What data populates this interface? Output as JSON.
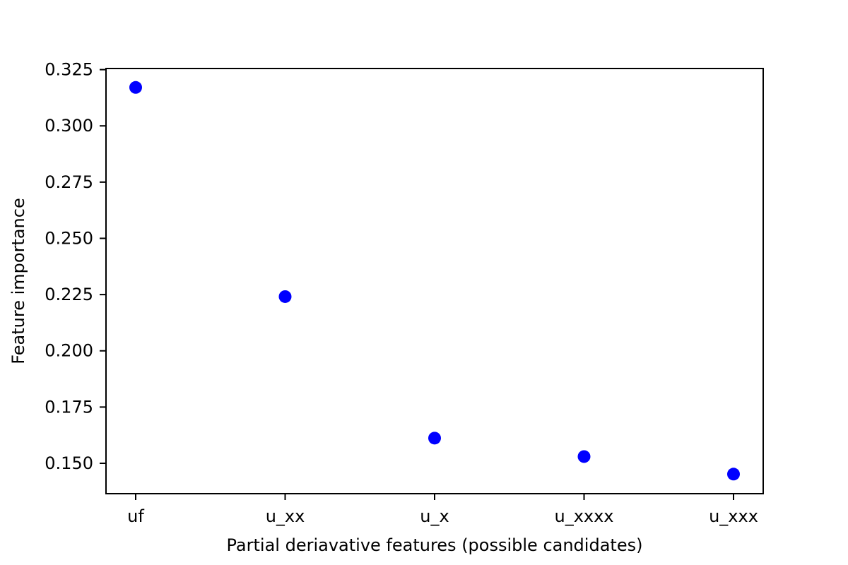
{
  "chart_data": {
    "type": "scatter",
    "title": "",
    "xlabel": "Partial deriavative features (possible candidates)",
    "ylabel": "Feature importance",
    "categories": [
      "uf",
      "u_xx",
      "u_x",
      "u_xxxx",
      "u_xxx"
    ],
    "values": [
      0.3171,
      0.2241,
      0.1612,
      0.153,
      0.1452
    ],
    "ylim": [
      0.1365,
      0.3255
    ],
    "yticks": [
      0.15,
      0.175,
      0.2,
      0.225,
      0.25,
      0.275,
      0.3,
      0.325
    ],
    "ytick_labels": [
      "0.150",
      "0.175",
      "0.200",
      "0.225",
      "0.250",
      "0.275",
      "0.300",
      "0.325"
    ],
    "grid": false,
    "legend": "none",
    "marker_color": "#0000ff"
  }
}
